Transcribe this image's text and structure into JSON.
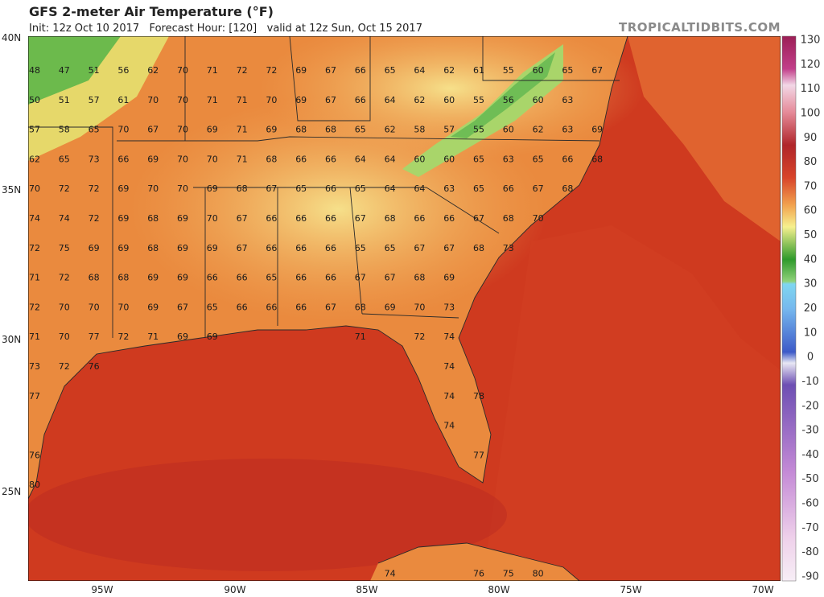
{
  "header": {
    "title": "GFS 2-meter Air Temperature (°F)",
    "subtitle": "Init: 12z Oct 10 2017   Forecast Hour: [120]   valid at 12z Sun, Oct 15 2017",
    "brand": "TROPICALTIDBITS.COM"
  },
  "latitude_labels": [
    "40N",
    "35N",
    "30N",
    "25N"
  ],
  "longitude_labels": [
    "95W",
    "90W",
    "85W",
    "80W",
    "75W",
    "70W"
  ],
  "colorbar_labels": [
    "130",
    "120",
    "110",
    "100",
    "90",
    "80",
    "70",
    "60",
    "50",
    "40",
    "30",
    "20",
    "10",
    "0",
    "-10",
    "-20",
    "-30",
    "-40",
    "-50",
    "-60",
    "-70",
    "-80",
    "-90"
  ],
  "stations": {
    "rows": [
      [
        "48",
        "47",
        "51",
        "56",
        "62",
        "70",
        "71",
        "72",
        "72",
        "69",
        "67",
        "66",
        "65",
        "64",
        "62",
        "61",
        "55",
        "60",
        "65",
        "67"
      ],
      [
        "50",
        "51",
        "57",
        "61",
        "70",
        "70",
        "71",
        "71",
        "70",
        "69",
        "67",
        "66",
        "64",
        "62",
        "60",
        "55",
        "56",
        "60",
        "63",
        null
      ],
      [
        "57",
        "58",
        "65",
        "70",
        "67",
        "70",
        "69",
        "71",
        "69",
        "68",
        "68",
        "65",
        "62",
        "58",
        "57",
        "55",
        "60",
        "62",
        "63",
        "69"
      ],
      [
        "62",
        "65",
        "73",
        "66",
        "69",
        "70",
        "70",
        "71",
        "68",
        "66",
        "66",
        "64",
        "64",
        "60",
        "60",
        "65",
        "63",
        "65",
        "66",
        "68"
      ],
      [
        "70",
        "72",
        "72",
        "69",
        "70",
        "70",
        "69",
        "68",
        "67",
        "65",
        "66",
        "65",
        "64",
        "64",
        "63",
        "65",
        "66",
        "67",
        "68",
        null
      ],
      [
        "74",
        "74",
        "72",
        "69",
        "68",
        "69",
        "70",
        "67",
        "66",
        "66",
        "66",
        "67",
        "68",
        "66",
        "66",
        "67",
        "68",
        "70",
        null,
        null
      ],
      [
        "72",
        "75",
        "69",
        "69",
        "68",
        "69",
        "69",
        "67",
        "66",
        "66",
        "66",
        "65",
        "65",
        "67",
        "67",
        "68",
        "73",
        null,
        null,
        null
      ],
      [
        "71",
        "72",
        "68",
        "68",
        "69",
        "69",
        "66",
        "66",
        "65",
        "66",
        "66",
        "67",
        "67",
        "68",
        "69",
        null,
        null,
        null,
        null,
        null
      ],
      [
        "72",
        "70",
        "70",
        "70",
        "69",
        "67",
        "65",
        "66",
        "66",
        "66",
        "67",
        "68",
        "69",
        "70",
        "73",
        null,
        null,
        null,
        null,
        null
      ],
      [
        "71",
        "70",
        "77",
        "72",
        "71",
        "69",
        "69",
        null,
        null,
        null,
        null,
        "71",
        null,
        "72",
        "74",
        null,
        null,
        null,
        null,
        null
      ],
      [
        "73",
        "72",
        "76",
        null,
        null,
        null,
        null,
        null,
        null,
        null,
        null,
        null,
        null,
        null,
        "74",
        null,
        null,
        null,
        null,
        null
      ],
      [
        "77",
        null,
        null,
        null,
        null,
        null,
        null,
        null,
        null,
        null,
        null,
        null,
        null,
        null,
        "74",
        "78",
        null,
        null,
        null,
        null
      ],
      [
        null,
        null,
        null,
        null,
        null,
        null,
        null,
        null,
        null,
        null,
        null,
        null,
        null,
        null,
        "74",
        null,
        null,
        null,
        null,
        null
      ],
      [
        "76",
        null,
        null,
        null,
        null,
        null,
        null,
        null,
        null,
        null,
        null,
        null,
        null,
        null,
        null,
        "77",
        null,
        null,
        null,
        null
      ],
      [
        "80",
        null,
        null,
        null,
        null,
        null,
        null,
        null,
        null,
        null,
        null,
        null,
        null,
        null,
        null,
        null,
        null,
        null,
        null,
        null
      ],
      [
        null,
        null,
        null,
        null,
        null,
        null,
        null,
        null,
        null,
        null,
        null,
        null,
        null,
        null,
        null,
        null,
        null,
        null,
        null,
        null
      ],
      [
        null,
        null,
        null,
        null,
        null,
        null,
        null,
        null,
        null,
        null,
        null,
        null,
        null,
        null,
        null,
        null,
        null,
        null,
        null,
        null
      ],
      [
        null,
        null,
        null,
        null,
        null,
        null,
        null,
        null,
        null,
        null,
        null,
        null,
        "74",
        null,
        null,
        "76",
        "75",
        "80",
        null,
        null
      ]
    ]
  }
}
